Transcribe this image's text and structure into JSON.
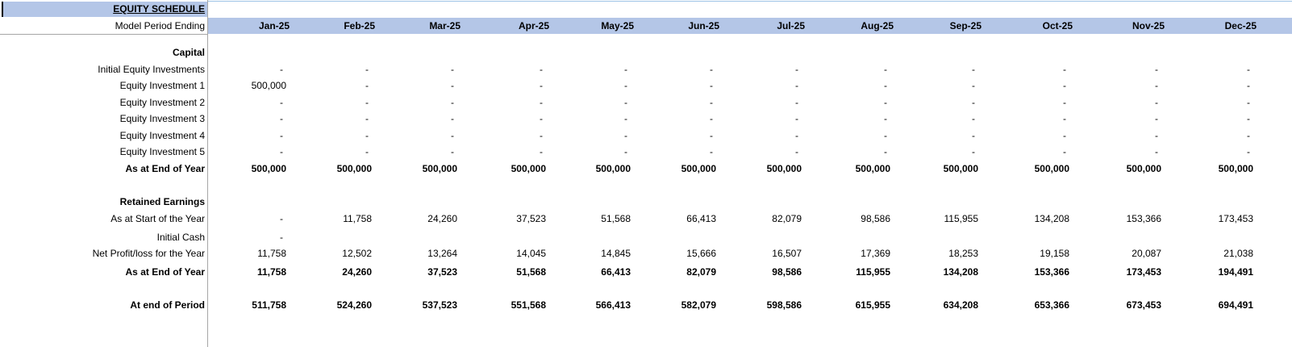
{
  "title": "EQUITY SCHEDULE",
  "period_label": "Model Period Ending",
  "months": [
    "Jan-25",
    "Feb-25",
    "Mar-25",
    "Apr-25",
    "May-25",
    "Jun-25",
    "Jul-25",
    "Aug-25",
    "Sep-25",
    "Oct-25",
    "Nov-25",
    "Dec-25"
  ],
  "rows": [
    {
      "label": "Capital",
      "bold": true,
      "values": []
    },
    {
      "label": "Initial Equity Investments",
      "bold": false,
      "values": [
        "-",
        "-",
        "-",
        "-",
        "-",
        "-",
        "-",
        "-",
        "-",
        "-",
        "-",
        "-"
      ]
    },
    {
      "label": "Equity Investment 1",
      "bold": false,
      "values": [
        "500,000",
        "-",
        "-",
        "-",
        "-",
        "-",
        "-",
        "-",
        "-",
        "-",
        "-",
        "-"
      ]
    },
    {
      "label": "Equity Investment 2",
      "bold": false,
      "values": [
        "-",
        "-",
        "-",
        "-",
        "-",
        "-",
        "-",
        "-",
        "-",
        "-",
        "-",
        "-"
      ]
    },
    {
      "label": "Equity Investment 3",
      "bold": false,
      "values": [
        "-",
        "-",
        "-",
        "-",
        "-",
        "-",
        "-",
        "-",
        "-",
        "-",
        "-",
        "-"
      ]
    },
    {
      "label": "Equity Investment 4",
      "bold": false,
      "values": [
        "-",
        "-",
        "-",
        "-",
        "-",
        "-",
        "-",
        "-",
        "-",
        "-",
        "-",
        "-"
      ]
    },
    {
      "label": "Equity Investment 5",
      "bold": false,
      "values": [
        "-",
        "-",
        "-",
        "-",
        "-",
        "-",
        "-",
        "-",
        "-",
        "-",
        "-",
        "-"
      ]
    },
    {
      "label": "As at End of Year",
      "bold": true,
      "values": [
        "500,000",
        "500,000",
        "500,000",
        "500,000",
        "500,000",
        "500,000",
        "500,000",
        "500,000",
        "500,000",
        "500,000",
        "500,000",
        "500,000"
      ]
    },
    {
      "label": "Retained Earnings",
      "bold": true,
      "values": []
    },
    {
      "label": "As at Start of the Year",
      "bold": false,
      "values": [
        "-",
        "11,758",
        "24,260",
        "37,523",
        "51,568",
        "66,413",
        "82,079",
        "98,586",
        "115,955",
        "134,208",
        "153,366",
        "173,453"
      ]
    },
    {
      "label": "Initial Cash",
      "bold": false,
      "values": [
        "-",
        "",
        "",
        "",
        "",
        "",
        "",
        "",
        "",
        "",
        "",
        ""
      ]
    },
    {
      "label": "Net Profit/loss for the Year",
      "bold": false,
      "values": [
        "11,758",
        "12,502",
        "13,264",
        "14,045",
        "14,845",
        "15,666",
        "16,507",
        "17,369",
        "18,253",
        "19,158",
        "20,087",
        "21,038"
      ]
    },
    {
      "label": "As at End of Year",
      "bold": true,
      "values": [
        "11,758",
        "24,260",
        "37,523",
        "51,568",
        "66,413",
        "82,079",
        "98,586",
        "115,955",
        "134,208",
        "153,366",
        "173,453",
        "194,491"
      ]
    },
    {
      "label": "At end of Period",
      "bold": true,
      "values": [
        "511,758",
        "524,260",
        "537,523",
        "551,568",
        "566,413",
        "582,079",
        "598,586",
        "615,955",
        "634,208",
        "653,366",
        "673,453",
        "694,491"
      ]
    }
  ]
}
